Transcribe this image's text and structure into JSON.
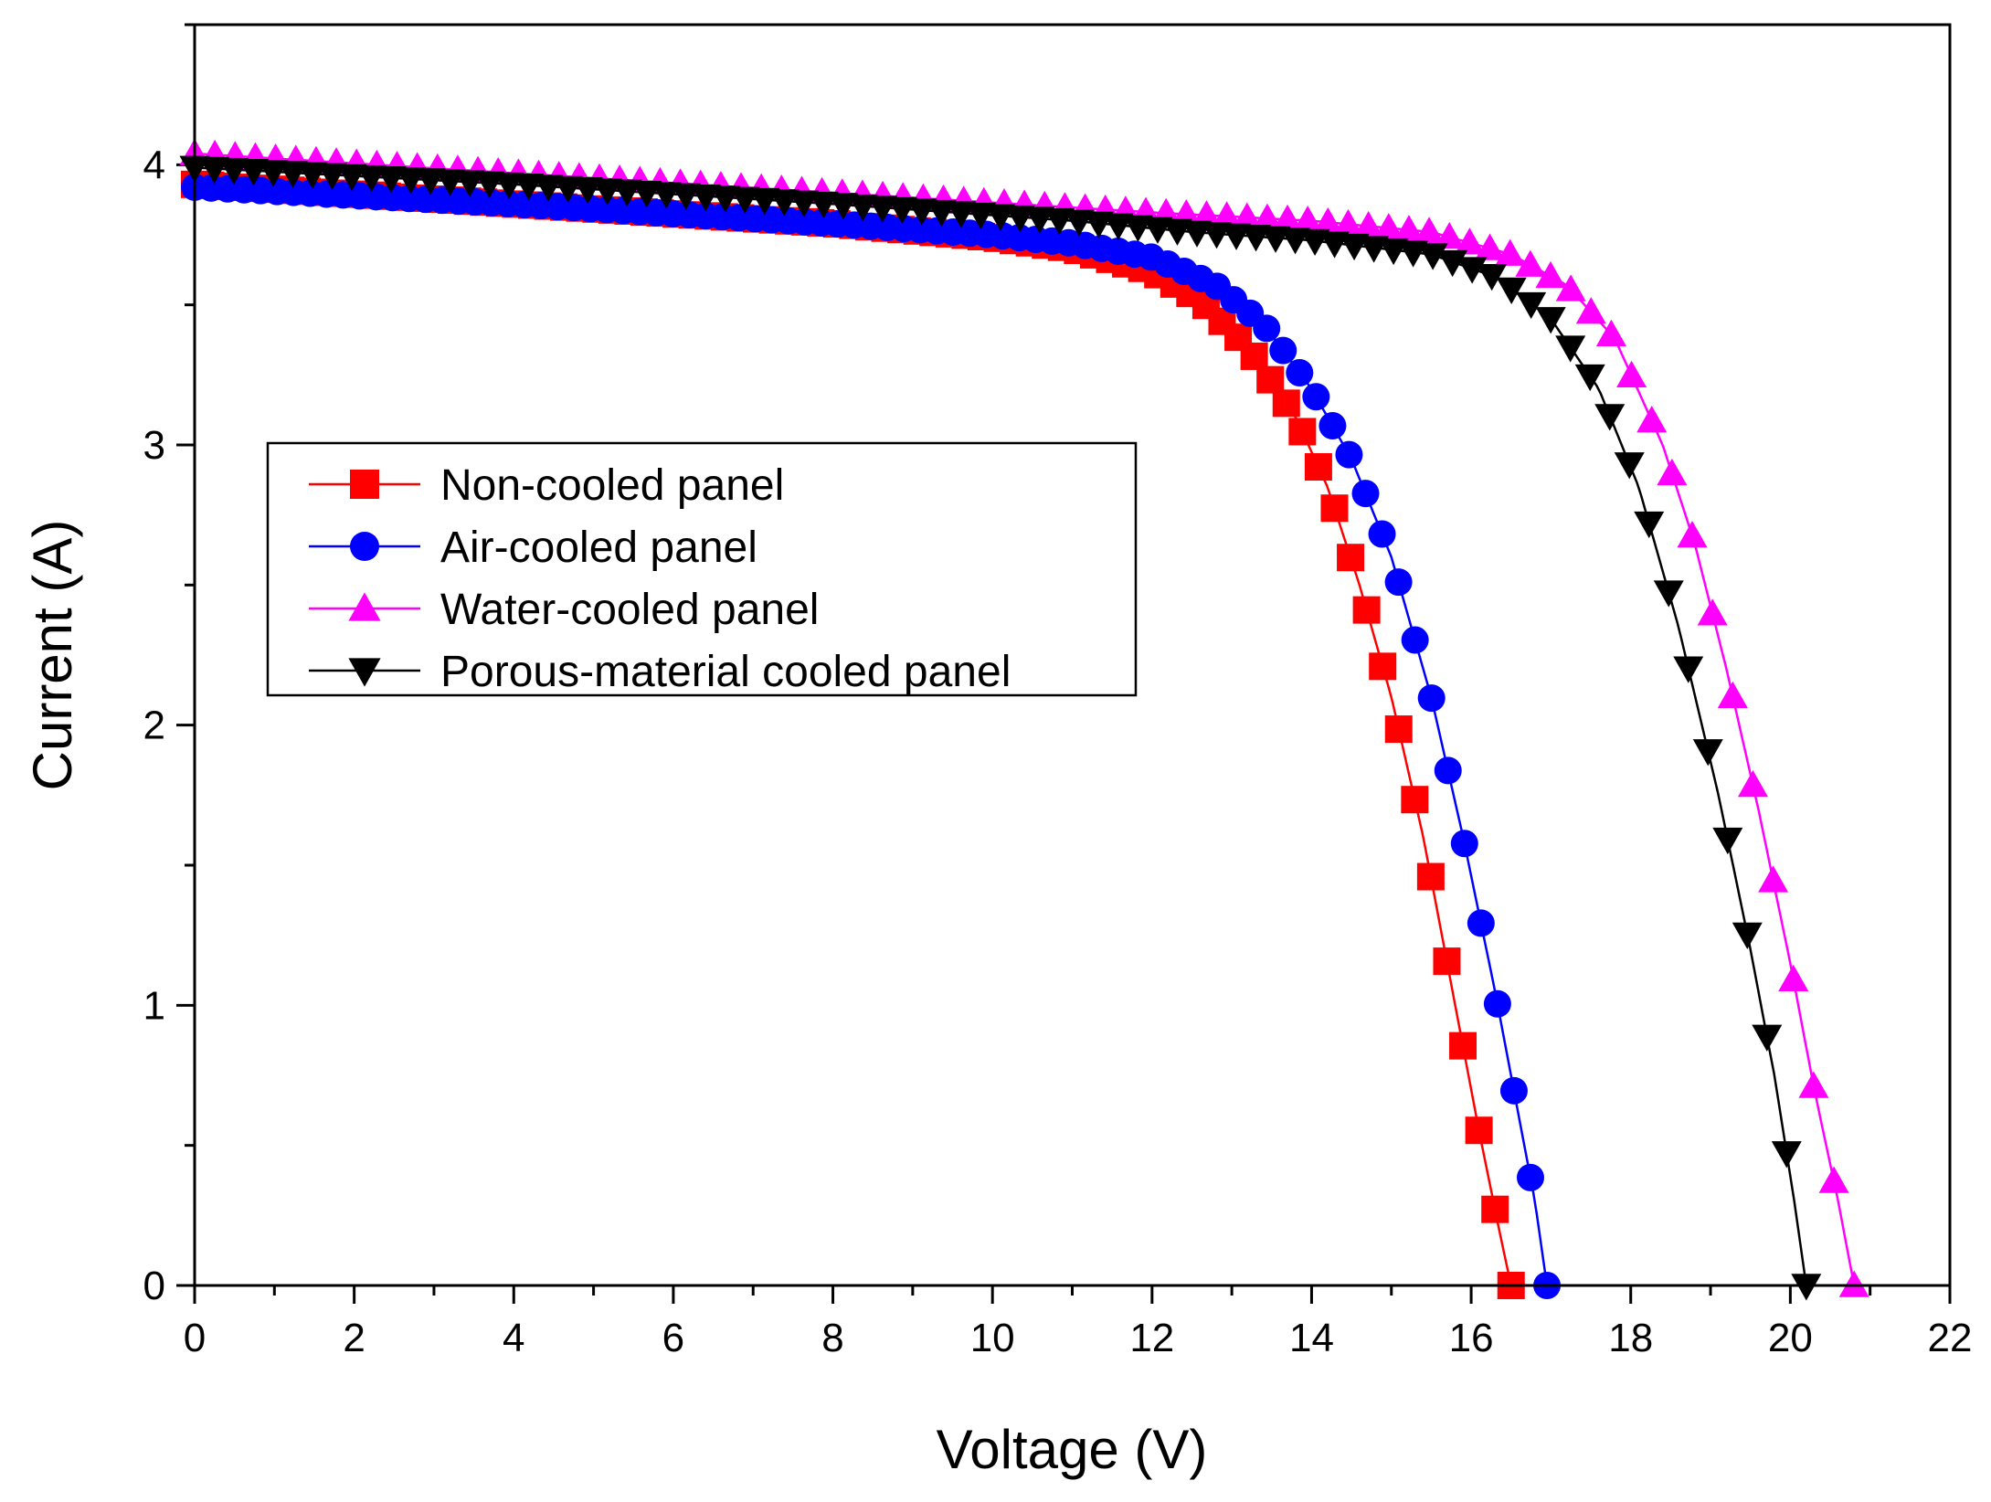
{
  "chart_data": {
    "type": "line",
    "title": "",
    "xlabel": "Voltage (V)",
    "ylabel": "Current (A)",
    "xlim": [
      0,
      22
    ],
    "ylim": [
      0,
      4.5
    ],
    "xticks": [
      0,
      2,
      4,
      6,
      8,
      10,
      12,
      14,
      16,
      18,
      20,
      22
    ],
    "yticks": [
      0,
      1,
      2,
      3,
      4
    ],
    "grid": false,
    "legend_position": "upper-left",
    "series": [
      {
        "name": "Non-cooled panel",
        "color": "#ff0000",
        "marker": "square",
        "knots": [
          [
            0,
            3.93
          ],
          [
            4,
            3.86
          ],
          [
            8,
            3.79
          ],
          [
            10,
            3.74
          ],
          [
            11,
            3.7
          ],
          [
            12,
            3.62
          ],
          [
            12.6,
            3.52
          ],
          [
            13.2,
            3.35
          ],
          [
            13.8,
            3.1
          ],
          [
            14.2,
            2.85
          ],
          [
            14.6,
            2.5
          ],
          [
            15.0,
            2.1
          ],
          [
            15.4,
            1.6
          ],
          [
            15.8,
            1.0
          ],
          [
            16.1,
            0.55
          ],
          [
            16.35,
            0.2
          ],
          [
            16.5,
            0.0
          ]
        ]
      },
      {
        "name": "Air-cooled panel",
        "color": "#0000ff",
        "marker": "circle",
        "knots": [
          [
            0,
            3.92
          ],
          [
            4,
            3.86
          ],
          [
            8,
            3.79
          ],
          [
            10,
            3.75
          ],
          [
            11,
            3.72
          ],
          [
            12,
            3.67
          ],
          [
            12.8,
            3.57
          ],
          [
            13.4,
            3.43
          ],
          [
            14.0,
            3.2
          ],
          [
            14.5,
            2.95
          ],
          [
            15.0,
            2.6
          ],
          [
            15.5,
            2.1
          ],
          [
            15.9,
            1.6
          ],
          [
            16.3,
            1.05
          ],
          [
            16.6,
            0.6
          ],
          [
            16.8,
            0.3
          ],
          [
            16.95,
            0.0
          ]
        ]
      },
      {
        "name": "Water-cooled panel",
        "color": "#ff00ff",
        "marker": "triangle-up",
        "knots": [
          [
            0,
            4.04
          ],
          [
            4,
            3.97
          ],
          [
            8,
            3.9
          ],
          [
            12,
            3.83
          ],
          [
            14,
            3.8
          ],
          [
            15.5,
            3.76
          ],
          [
            16.5,
            3.68
          ],
          [
            17.2,
            3.57
          ],
          [
            17.8,
            3.38
          ],
          [
            18.4,
            3.0
          ],
          [
            18.8,
            2.65
          ],
          [
            19.2,
            2.2
          ],
          [
            19.6,
            1.7
          ],
          [
            20.0,
            1.15
          ],
          [
            20.3,
            0.7
          ],
          [
            20.6,
            0.3
          ],
          [
            20.8,
            0.0
          ]
        ]
      },
      {
        "name": "Porous-material cooled panel",
        "color": "#000000",
        "marker": "triangle-down",
        "knots": [
          [
            0,
            3.99
          ],
          [
            4,
            3.93
          ],
          [
            8,
            3.86
          ],
          [
            11,
            3.8
          ],
          [
            12.5,
            3.76
          ],
          [
            14,
            3.73
          ],
          [
            15.5,
            3.68
          ],
          [
            16.3,
            3.6
          ],
          [
            17.0,
            3.45
          ],
          [
            17.6,
            3.2
          ],
          [
            18.1,
            2.85
          ],
          [
            18.6,
            2.35
          ],
          [
            19.1,
            1.75
          ],
          [
            19.5,
            1.2
          ],
          [
            19.8,
            0.75
          ],
          [
            20.05,
            0.3
          ],
          [
            20.2,
            0.0
          ]
        ]
      }
    ]
  }
}
